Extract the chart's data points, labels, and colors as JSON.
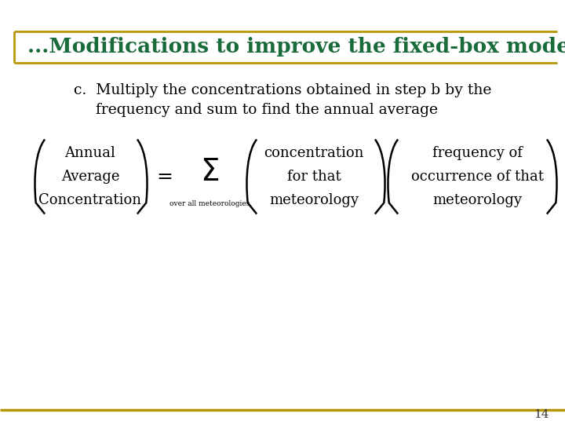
{
  "title": "...Modifications to improve the fixed-box model",
  "title_color": "#1a6b3a",
  "title_fontsize": 19,
  "subtitle_line1": "c.  Multiply the concentrations obtained in step b by the",
  "subtitle_line2": "frequency and sum to find the annual average",
  "subtitle_fontsize": 13.5,
  "subtitle_color": "#000000",
  "bg_color": "#ffffff",
  "border_color": "#b8960c",
  "page_number": "14",
  "equation_color": "#000000",
  "matrix_left_lines": [
    "Annual",
    "Average",
    "Concentration"
  ],
  "matrix_right1_lines": [
    "concentration",
    "for that",
    "meteorology"
  ],
  "matrix_right2_lines": [
    "frequency of",
    "occurrence of that",
    "meteorology"
  ],
  "sum_label": "over all meteorologies",
  "matrix_fontsize": 13,
  "sigma_fontsize": 28
}
